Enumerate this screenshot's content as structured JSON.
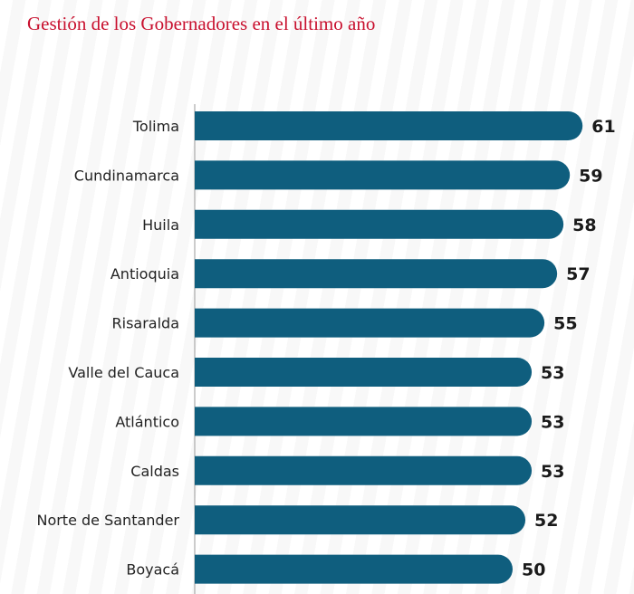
{
  "title": "Gestión de los Gobernadores en el último año",
  "colors": {
    "title": "#c8102e",
    "bar": "#0f5e7e",
    "axis": "#999999"
  },
  "chart_data": {
    "type": "bar",
    "orientation": "horizontal",
    "categories": [
      "Tolima",
      "Cundinamarca",
      "Huila",
      "Antioquia",
      "Risaralda",
      "Valle del Cauca",
      "Atlántico",
      "Caldas",
      "Norte de Santander",
      "Boyacá"
    ],
    "values": [
      61,
      59,
      58,
      57,
      55,
      53,
      53,
      53,
      52,
      50
    ],
    "value_labels": [
      "61",
      "59",
      "58",
      "57",
      "55",
      "53",
      "53",
      "53",
      "52",
      "50"
    ],
    "grid": false,
    "legend": "none"
  }
}
